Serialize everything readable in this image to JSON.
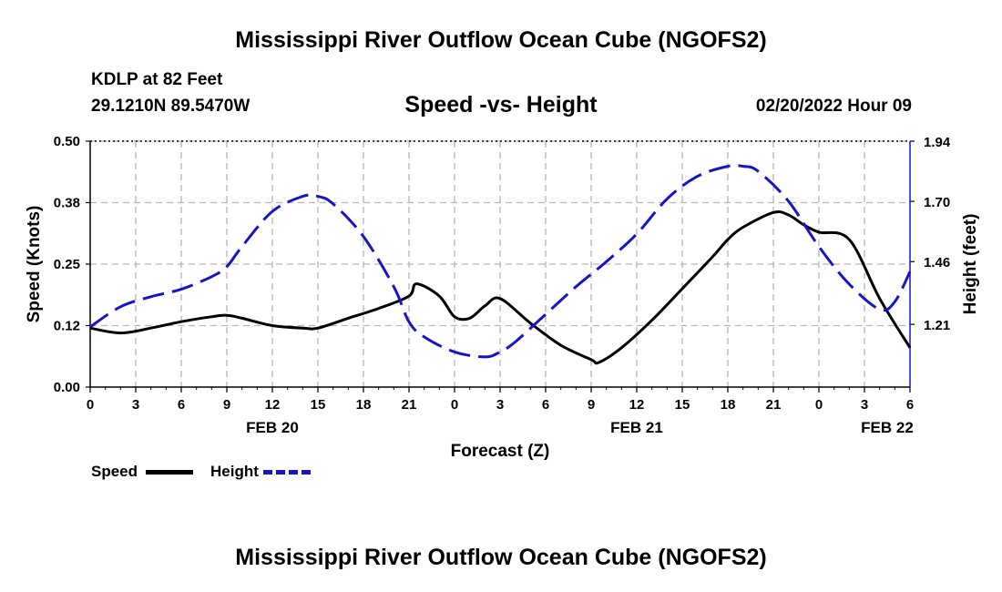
{
  "header": {
    "top_title": "Mississippi River Outflow Ocean Cube (NGOFS2)",
    "bottom_title": "Mississippi River Outflow Ocean Cube (NGOFS2)",
    "station": "KDLP at 82 Feet",
    "coords": "29.1210N  89.5470W",
    "datetime": "02/20/2022 Hour 09"
  },
  "legend": {
    "speed": "Speed",
    "height": "Height"
  },
  "colors": {
    "speed": "#000000",
    "height": "#1515c8",
    "grid": "#b4b4b4"
  },
  "chart_data": {
    "type": "line",
    "title": "Speed -vs- Height",
    "xlabel": "Forecast (Z)",
    "ylabel": "Speed (Knots)",
    "y2label": "Height (feet)",
    "x_range": [
      0,
      54
    ],
    "x_ticks": [
      0,
      3,
      6,
      9,
      12,
      15,
      18,
      21,
      24,
      27,
      30,
      33,
      36,
      39,
      42,
      45,
      48,
      51,
      54
    ],
    "x_tick_labels": [
      "0",
      "3",
      "6",
      "9",
      "12",
      "15",
      "18",
      "21",
      "0",
      "3",
      "6",
      "9",
      "12",
      "15",
      "18",
      "21",
      "0",
      "3",
      "6"
    ],
    "date_labels": [
      {
        "label": "FEB 20",
        "x": 12
      },
      {
        "label": "FEB 21",
        "x": 36
      },
      {
        "label": "FEB 22",
        "x": 52.5
      }
    ],
    "ylim": [
      0,
      0.5
    ],
    "y_ticks": [
      0,
      0.125,
      0.25,
      0.375,
      0.5
    ],
    "y_tick_labels": [
      "0.00",
      "0.12",
      "0.25",
      "0.38",
      "0.50"
    ],
    "y2lim": [
      0.96,
      1.94
    ],
    "y2_ticks": [
      1.21,
      1.46,
      1.7,
      1.94
    ],
    "y2_tick_labels": [
      "1.21",
      "1.46",
      "1.70",
      "1.94"
    ],
    "grid": true,
    "series": [
      {
        "name": "Speed",
        "axis": "left",
        "x": [
          0,
          2,
          4,
          6,
          8,
          9,
          10,
          12,
          14,
          15,
          17,
          19,
          21,
          21.5,
          23,
          24,
          25,
          26,
          27,
          29,
          31,
          33,
          33.5,
          35,
          37,
          39,
          41,
          42,
          43,
          45,
          46,
          47,
          48,
          50,
          52,
          54
        ],
        "y": [
          0.12,
          0.11,
          0.12,
          0.133,
          0.143,
          0.146,
          0.14,
          0.125,
          0.12,
          0.12,
          0.14,
          0.16,
          0.185,
          0.21,
          0.185,
          0.143,
          0.14,
          0.165,
          0.18,
          0.13,
          0.085,
          0.056,
          0.05,
          0.08,
          0.136,
          0.2,
          0.265,
          0.3,
          0.325,
          0.355,
          0.35,
          0.33,
          0.315,
          0.3,
          0.18,
          0.08
        ]
      },
      {
        "name": "Height",
        "axis": "right",
        "x": [
          0,
          2,
          4,
          6,
          8,
          9,
          10,
          12,
          14,
          15,
          16,
          18,
          20,
          21,
          22,
          24,
          26,
          27,
          28,
          30,
          32,
          34,
          36,
          38,
          40,
          42,
          43,
          44,
          46,
          48,
          50,
          52,
          53,
          54
        ],
        "y": [
          1.2,
          1.28,
          1.32,
          1.35,
          1.4,
          1.44,
          1.52,
          1.66,
          1.72,
          1.72,
          1.69,
          1.56,
          1.36,
          1.22,
          1.16,
          1.1,
          1.08,
          1.1,
          1.14,
          1.25,
          1.36,
          1.46,
          1.57,
          1.71,
          1.8,
          1.84,
          1.84,
          1.82,
          1.7,
          1.52,
          1.37,
          1.27,
          1.3,
          1.42
        ]
      }
    ]
  }
}
